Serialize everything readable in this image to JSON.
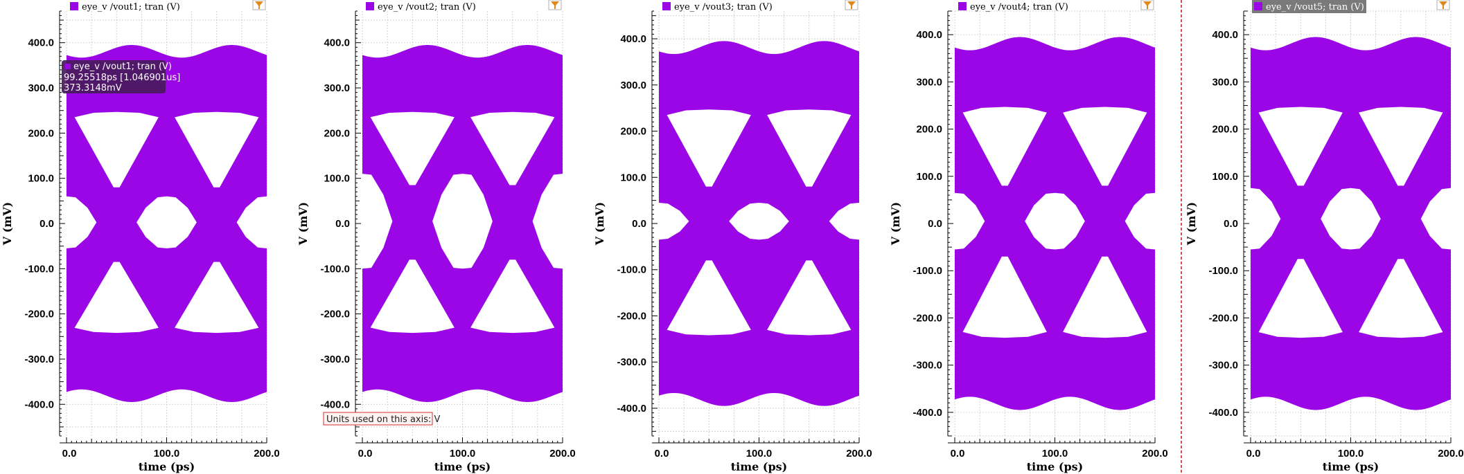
{
  "colors": {
    "trace": "#9a06e6",
    "grid": "#c8c8c8",
    "axis": "#000000",
    "divider": "#d01010",
    "legend_selected_bg": "#7a7a7a",
    "tooltip_bg": "#4a1a5e",
    "units_border": "#d03030",
    "units_bg": "#fff2f2"
  },
  "icons": {
    "filter": "funnel-icon"
  },
  "tooltip": {
    "line1": "eye_v /vout1; tran (V)",
    "line2": "99.25518ps [1.046901us]",
    "line3": "373.3148mV"
  },
  "units_note": "Units used on this axis: V",
  "chart_data": [
    {
      "type": "line",
      "legend": "eye_v /vout1; tran (V)",
      "xlabel": "time (ps)",
      "ylabel": "V (mV)",
      "xlim": [
        0,
        200
      ],
      "ylim": [
        -470,
        470
      ],
      "x_ticks": [
        "0.0",
        "100.0",
        "200.0"
      ],
      "y_ticks": [
        "400.0",
        "300.0",
        "200.0",
        "100.0",
        "0.0",
        "-100.0",
        "-200.0",
        "-300.0",
        "-400.0"
      ],
      "unit_interval_ps": 100,
      "levels_mV": [
        -375,
        -120,
        120,
        375
      ],
      "eye_openings_mV": {
        "upper": [
          245,
          80
        ],
        "middle": [
          60,
          -55
        ],
        "lower": [
          -85,
          -240
        ]
      }
    },
    {
      "type": "line",
      "legend": "eye_v /vout2; tran (V)",
      "xlabel": "time (ps)",
      "ylabel": "V (mV)",
      "xlim": [
        0,
        200
      ],
      "ylim": [
        -470,
        470
      ],
      "x_ticks": [
        "0.0",
        "100.0",
        "200.0"
      ],
      "y_ticks": [
        "400.0",
        "300.0",
        "200.0",
        "100.0",
        "0.0",
        "-100.0",
        "-200.0",
        "-300.0",
        "-400.0"
      ],
      "unit_interval_ps": 100,
      "levels_mV": [
        -375,
        -120,
        120,
        375
      ],
      "eye_openings_mV": {
        "upper": [
          245,
          85
        ],
        "middle": [
          110,
          -100
        ],
        "lower": [
          -80,
          -240
        ]
      }
    },
    {
      "type": "line",
      "legend": "eye_v /vout3; tran (V)",
      "xlabel": "time (ps)",
      "ylabel": "V (mV)",
      "xlim": [
        0,
        200
      ],
      "ylim": [
        -460,
        460
      ],
      "x_ticks": [
        "0.0",
        "100.0",
        "200.0"
      ],
      "y_ticks": [
        "400.0",
        "300.0",
        "200.0",
        "100.0",
        "0.0",
        "-100.0",
        "-200.0",
        "-300.0",
        "-400.0"
      ],
      "unit_interval_ps": 100,
      "levels_mV": [
        -375,
        -120,
        120,
        375
      ],
      "eye_openings_mV": {
        "upper": [
          245,
          80
        ],
        "middle": [
          45,
          -35
        ],
        "lower": [
          -80,
          -240
        ]
      }
    },
    {
      "type": "line",
      "legend": "eye_v /vout4; tran (V)",
      "xlabel": "time (ps)",
      "ylabel": "V (mV)",
      "xlim": [
        0,
        200
      ],
      "ylim": [
        -450,
        450
      ],
      "x_ticks": [
        "0.0",
        "100.0",
        "200.0"
      ],
      "y_ticks": [
        "400.0",
        "300.0",
        "200.0",
        "100.0",
        "0.0",
        "-100.0",
        "-200.0",
        "-300.0",
        "-400.0"
      ],
      "unit_interval_ps": 100,
      "levels_mV": [
        -375,
        -120,
        120,
        375
      ],
      "eye_openings_mV": {
        "upper": [
          245,
          80
        ],
        "middle": [
          65,
          -55
        ],
        "lower": [
          -70,
          -240
        ]
      }
    },
    {
      "type": "line",
      "legend": "eye_v /vout5; tran (V)",
      "xlabel": "time (ps)",
      "ylabel": "V (mV)",
      "xlim": [
        0,
        200
      ],
      "ylim": [
        -450,
        450
      ],
      "x_ticks": [
        "0.0",
        "100.0",
        "200.0"
      ],
      "y_ticks": [
        "400.0",
        "300.0",
        "200.0",
        "100.0",
        "0.0",
        "-100.0",
        "-200.0",
        "-300.0",
        "-400.0"
      ],
      "unit_interval_ps": 100,
      "levels_mV": [
        -375,
        -120,
        120,
        375
      ],
      "eye_openings_mV": {
        "upper": [
          245,
          80
        ],
        "middle": [
          75,
          -55
        ],
        "lower": [
          -75,
          -240
        ]
      }
    }
  ]
}
